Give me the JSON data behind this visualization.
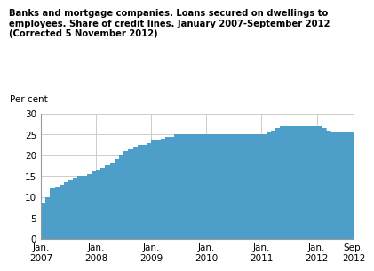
{
  "title": "Banks and mortgage companies. Loans secured on dwellings to\nemployees. Share of credit lines. January 2007-September 2012\n(Corrected 5 November 2012)",
  "ylabel": "Per cent",
  "ylim": [
    0,
    30
  ],
  "yticks": [
    0,
    5,
    10,
    15,
    20,
    25,
    30
  ],
  "area_color": "#4d9fca",
  "bg_color": "#ffffff",
  "grid_color": "#cccccc",
  "x_labels": [
    "Jan.\n2007",
    "Jan.\n2008",
    "Jan.\n2009",
    "Jan.\n2010",
    "Jan.\n2011",
    "Jan.\n2012",
    "Sep.\n2012"
  ],
  "xtick_positions": [
    0,
    12,
    24,
    36,
    48,
    60,
    68
  ],
  "xlim": [
    0,
    68
  ],
  "months": [
    0,
    1,
    2,
    3,
    4,
    5,
    6,
    7,
    8,
    9,
    10,
    11,
    12,
    13,
    14,
    15,
    16,
    17,
    18,
    19,
    20,
    21,
    22,
    23,
    24,
    25,
    26,
    27,
    28,
    29,
    30,
    31,
    32,
    33,
    34,
    35,
    36,
    37,
    38,
    39,
    40,
    41,
    42,
    43,
    44,
    45,
    46,
    47,
    48,
    49,
    50,
    51,
    52,
    53,
    54,
    55,
    56,
    57,
    58,
    59,
    60,
    61,
    62,
    63,
    64,
    65,
    66,
    67,
    68
  ],
  "values": [
    8.5,
    10.0,
    12.0,
    12.5,
    13.0,
    13.5,
    14.0,
    14.5,
    15.0,
    15.0,
    15.5,
    16.0,
    16.5,
    17.0,
    17.5,
    18.0,
    19.0,
    20.0,
    21.0,
    21.5,
    22.0,
    22.5,
    22.5,
    23.0,
    23.5,
    23.5,
    24.0,
    24.5,
    24.5,
    25.0,
    25.0,
    25.0,
    25.0,
    25.0,
    25.0,
    25.0,
    25.0,
    25.0,
    25.0,
    25.0,
    25.0,
    25.0,
    25.0,
    25.0,
    25.0,
    25.0,
    25.0,
    25.0,
    25.0,
    25.5,
    26.0,
    26.5,
    27.0,
    27.0,
    27.0,
    27.0,
    27.0,
    27.0,
    27.0,
    27.0,
    27.0,
    26.5,
    26.0,
    25.5,
    25.5,
    25.5,
    25.5,
    25.5,
    25.5
  ]
}
